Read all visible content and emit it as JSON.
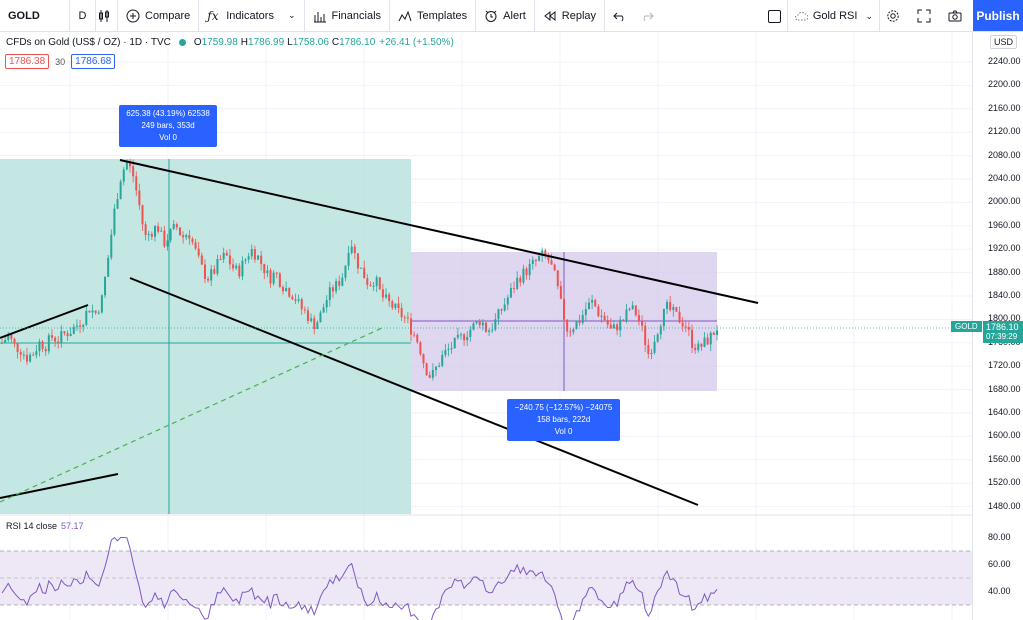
{
  "toolbar": {
    "symbol": "GOLD",
    "interval": "D",
    "compare": "Compare",
    "indicators": "Indicators",
    "financials": "Financials",
    "templates": "Templates",
    "alert": "Alert",
    "replay": "Replay",
    "layout_name": "Gold RSI",
    "publish": "Publish"
  },
  "legend": {
    "title": "CFDs on Gold (US$ / OZ) · 1D · TVC",
    "o_label": "O",
    "o": "1759.98",
    "h_label": "H",
    "h": "1786.99",
    "l_label": "L",
    "l": "1758.06",
    "c_label": "C",
    "c": "1786.10",
    "change": "+26.41 (+1.50%)",
    "bid": "1786.38",
    "spread": "30",
    "ask": "1786.68"
  },
  "price_axis": {
    "currency": "USD",
    "ticks": [
      "2240.00",
      "2200.00",
      "2160.00",
      "2120.00",
      "2080.00",
      "2040.00",
      "2000.00",
      "1960.00",
      "1920.00",
      "1880.00",
      "1840.00",
      "1800.00",
      "1760.00",
      "1720.00",
      "1680.00",
      "1640.00",
      "1600.00",
      "1560.00",
      "1520.00",
      "1480.00"
    ],
    "last_symbol": "GOLD",
    "last_price": "1786.10",
    "countdown": "07:39:29"
  },
  "measure_up": {
    "line1": "625.38 (43.19%) 62538",
    "line2": "249 bars, 353d",
    "line3": "Vol 0"
  },
  "measure_down": {
    "line1": "−240.75 (−12.57%) −24075",
    "line2": "158 bars, 222d",
    "line3": "Vol 0"
  },
  "rsi": {
    "label": "RSI 14 close",
    "value": "57.17",
    "ticks": [
      "80.00",
      "60.00",
      "40.00"
    ]
  },
  "colors": {
    "up": "#26a69a",
    "down": "#ef5350",
    "accent": "#2962ff",
    "rsi": "#7e57c2",
    "measure_up_fill": "#b2dfdb",
    "measure_down_fill": "#d1c4e9"
  },
  "chart_data": {
    "type": "line",
    "title": "CFDs on Gold (US$ / OZ)",
    "ylim": [
      1460,
      2260
    ],
    "close_path": [
      1760,
      1772,
      1755,
      1748,
      1735,
      1742,
      1760,
      1755,
      1770,
      1765,
      1775,
      1780,
      1790,
      1800,
      1820,
      1810,
      1830,
      1900,
      1980,
      2040,
      2070,
      2050,
      2000,
      1940,
      1950,
      1960,
      1930,
      1945,
      1960,
      1940,
      1950,
      1920,
      1890,
      1870,
      1880,
      1900,
      1910,
      1890,
      1880,
      1900,
      1920,
      1910,
      1890,
      1870,
      1880,
      1860,
      1850,
      1840,
      1820,
      1810,
      1790,
      1800,
      1830,
      1850,
      1860,
      1880,
      1940,
      1900,
      1880,
      1860,
      1870,
      1840,
      1830,
      1820,
      1810,
      1800,
      1780,
      1760,
      1720,
      1700,
      1720,
      1740,
      1750,
      1760,
      1770,
      1780,
      1790,
      1800,
      1780,
      1790,
      1810,
      1830,
      1850,
      1870,
      1880,
      1890,
      1900,
      1910,
      1900,
      1870,
      1820,
      1780,
      1790,
      1800,
      1820,
      1830,
      1810,
      1800,
      1780,
      1790,
      1800,
      1820,
      1810,
      1780,
      1740,
      1770,
      1800,
      1820,
      1810,
      1800,
      1790,
      1760,
      1750,
      1760,
      1770,
      1786
    ]
  }
}
